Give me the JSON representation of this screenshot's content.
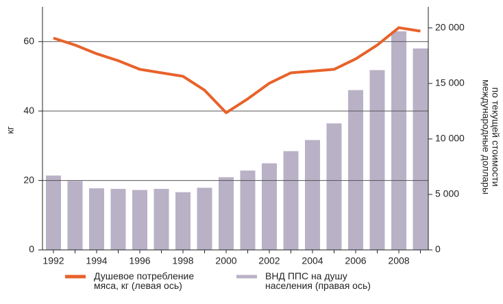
{
  "chart_data": {
    "type": "bar_line",
    "categories": [
      "1992",
      null,
      "1994",
      null,
      "1996",
      null,
      "1998",
      null,
      "2000",
      null,
      "2002",
      null,
      "2004",
      null,
      "2006",
      null,
      "2008",
      null
    ],
    "series": [
      {
        "name": "ВНД ППС на душу населения (правая ось)",
        "color": "#b9b1c6",
        "axis": "y2",
        "kind": "bar",
        "values": [
          6700,
          6200,
          5550,
          5500,
          5400,
          5500,
          5200,
          5600,
          6550,
          7150,
          7800,
          8900,
          9900,
          11400,
          14400,
          16200,
          19700,
          18150
        ]
      },
      {
        "name": "Душевое потребление мяса, кг (левая ось)",
        "color": "#e8622a",
        "kind": "line",
        "values": [
          61,
          59,
          56.5,
          54.5,
          52,
          51,
          50,
          46,
          39.5,
          43.5,
          48,
          51,
          51.5,
          52,
          55,
          59,
          64,
          63
        ]
      }
    ],
    "ylabel": "кг",
    "y2label": [
      "международные доллары",
      "по текущей стоимости"
    ],
    "ylim": [
      0,
      70
    ],
    "yticks": [
      0,
      20,
      40,
      60
    ],
    "y2lim": [
      0,
      21900
    ],
    "y2ticks": [
      0,
      {
        "value": 5000,
        "label": "5 000"
      },
      {
        "value": 10000,
        "label": "10 000"
      },
      {
        "value": 15000,
        "label": "15 000"
      },
      {
        "value": 20000,
        "label": "20 000"
      }
    ],
    "grid": true
  }
}
